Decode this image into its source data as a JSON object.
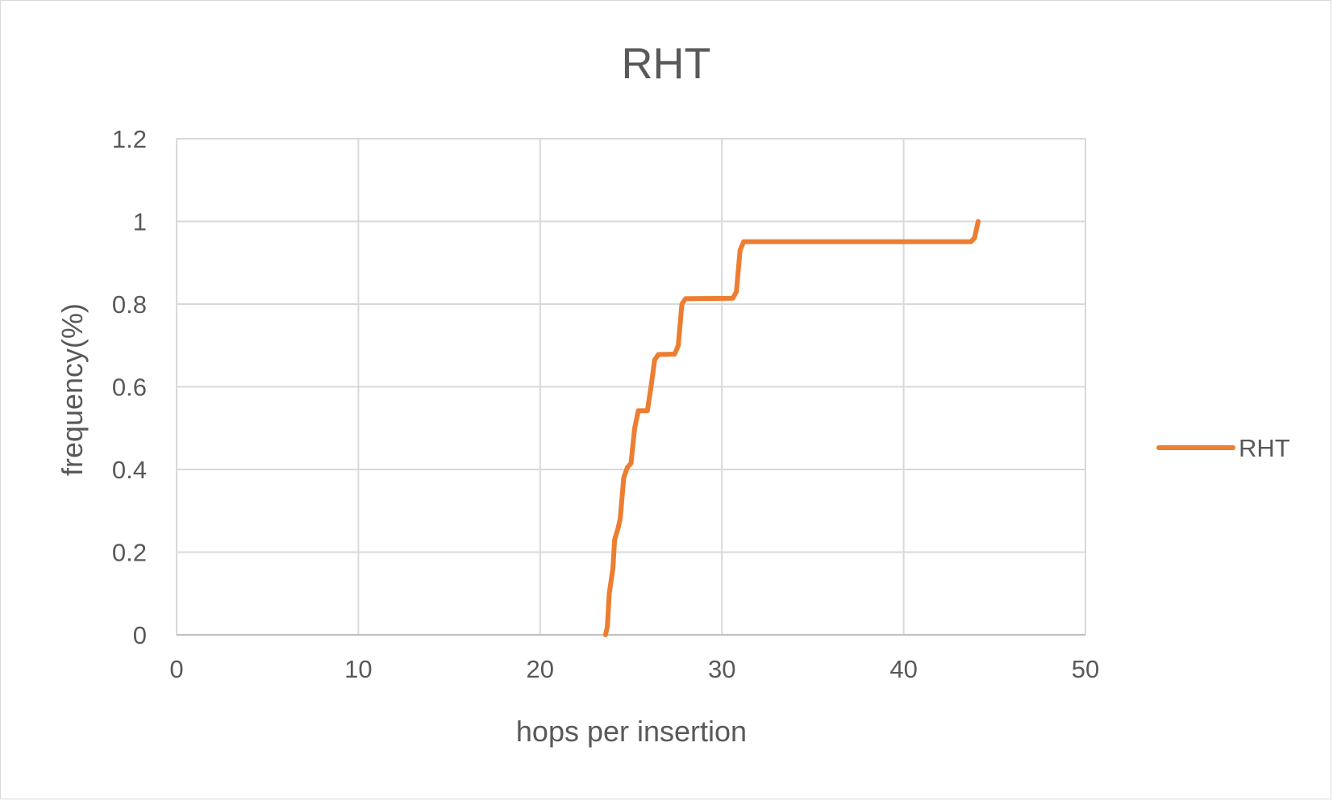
{
  "chart_data": {
    "type": "line",
    "title": "RHT",
    "xlabel": "hops per insertion",
    "ylabel": "frequency(%)",
    "xlim": [
      0,
      50
    ],
    "ylim": [
      0,
      1.2
    ],
    "x_ticks": [
      "0",
      "10",
      "20",
      "30",
      "40",
      "50"
    ],
    "y_ticks": [
      "0",
      "0.2",
      "0.4",
      "0.6",
      "0.8",
      "1",
      "1.2"
    ],
    "grid": true,
    "legend_position": "right",
    "series": [
      {
        "name": "RHT",
        "color": "#ED7D31",
        "points": [
          [
            23.6,
            0.0
          ],
          [
            23.7,
            0.02
          ],
          [
            23.8,
            0.1
          ],
          [
            24.0,
            0.16
          ],
          [
            24.1,
            0.23
          ],
          [
            24.3,
            0.26
          ],
          [
            24.4,
            0.28
          ],
          [
            24.6,
            0.38
          ],
          [
            24.8,
            0.405
          ],
          [
            25.0,
            0.415
          ],
          [
            25.2,
            0.5
          ],
          [
            25.4,
            0.542
          ],
          [
            25.9,
            0.542
          ],
          [
            26.1,
            0.6
          ],
          [
            26.3,
            0.665
          ],
          [
            26.5,
            0.678
          ],
          [
            27.4,
            0.679
          ],
          [
            27.6,
            0.7
          ],
          [
            27.8,
            0.8
          ],
          [
            28.0,
            0.813
          ],
          [
            30.6,
            0.814
          ],
          [
            30.8,
            0.83
          ],
          [
            31.0,
            0.93
          ],
          [
            31.2,
            0.951
          ],
          [
            43.7,
            0.951
          ],
          [
            43.9,
            0.96
          ],
          [
            44.1,
            1.0
          ]
        ]
      }
    ]
  }
}
